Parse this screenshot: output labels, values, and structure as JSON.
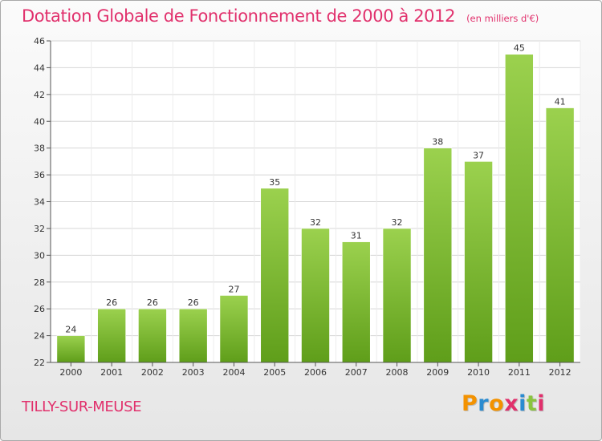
{
  "title": "Dotation Globale de Fonctionnement de 2000 à 2012",
  "unit_note": "(en milliers d'€)",
  "place": "TILLY-SUR-MEUSE",
  "logo": {
    "text": "Proxiti",
    "letter_colors": [
      "#f39200",
      "#2a8bd0",
      "#f39200",
      "#e1306c",
      "#2a8bd0",
      "#8ac43f",
      "#e1306c"
    ]
  },
  "colors": {
    "accent": "#e1306c",
    "bar_top": "#9bd14e",
    "bar_bottom": "#5f9e1a"
  },
  "chart_data": {
    "type": "bar",
    "title": "Dotation Globale de Fonctionnement de 2000 à 2012",
    "subtitle": "(en milliers d'€)",
    "categories": [
      "2000",
      "2001",
      "2002",
      "2003",
      "2004",
      "2005",
      "2006",
      "2007",
      "2008",
      "2009",
      "2010",
      "2011",
      "2012"
    ],
    "values": [
      24,
      26,
      26,
      26,
      27,
      35,
      32,
      31,
      32,
      38,
      37,
      45,
      41
    ],
    "xlabel": "",
    "ylabel": "",
    "ylim": [
      22,
      46
    ],
    "yticks": [
      22,
      24,
      26,
      28,
      30,
      32,
      34,
      36,
      38,
      40,
      42,
      44,
      46
    ],
    "grid": true,
    "legend": "none"
  }
}
